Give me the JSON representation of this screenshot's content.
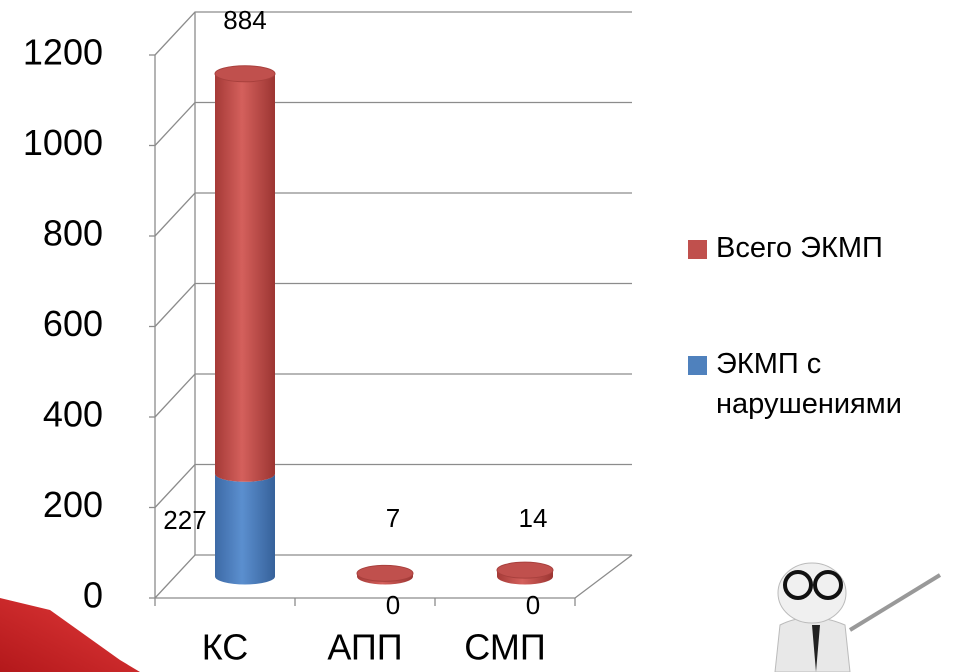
{
  "chart_data": {
    "type": "bar3d_stacked",
    "categories": [
      "КС",
      "АПП",
      "СМП"
    ],
    "series": [
      {
        "name": "ЭКМП с нарушениями",
        "color": "#4f81bd",
        "values": [
          227,
          0,
          0
        ]
      },
      {
        "name": "Всего ЭКМП",
        "color": "#c0504d",
        "values": [
          884,
          7,
          14
        ]
      }
    ],
    "ylim": [
      0,
      1200
    ],
    "yticks": [
      0,
      200,
      400,
      600,
      800,
      1000,
      1200
    ],
    "grid": true
  }
}
